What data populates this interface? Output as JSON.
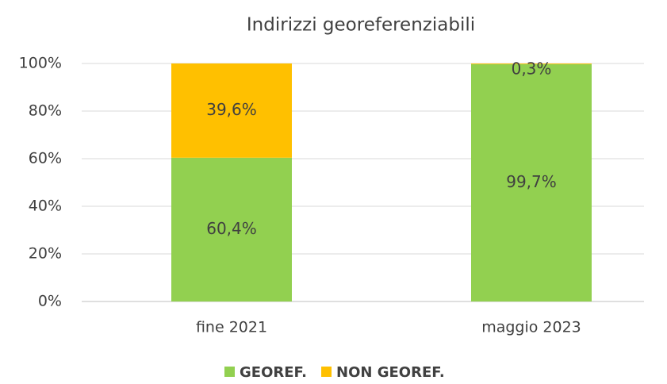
{
  "chart_data": {
    "type": "stacked_bar",
    "title": "Indirizzi georeferenziabili",
    "categories": [
      "fine 2021",
      "maggio 2023"
    ],
    "series": [
      {
        "name": "GEOREF.",
        "color": "#92d050",
        "values": [
          60.4,
          99.7
        ],
        "value_labels": [
          "60,4%",
          "99,7%"
        ]
      },
      {
        "name": "NON GEOREF.",
        "color": "#ffc000",
        "values": [
          39.6,
          0.3
        ],
        "value_labels": [
          "39,6%",
          "0,3%"
        ]
      }
    ],
    "ylim": [
      0,
      100
    ],
    "yticks": [
      {
        "value": 0,
        "label": "0%"
      },
      {
        "value": 20,
        "label": "20%"
      },
      {
        "value": 40,
        "label": "40%"
      },
      {
        "value": 60,
        "label": "60%"
      },
      {
        "value": 80,
        "label": "80%"
      },
      {
        "value": 100,
        "label": "100%"
      }
    ],
    "grid": true,
    "legend": "bottom"
  }
}
